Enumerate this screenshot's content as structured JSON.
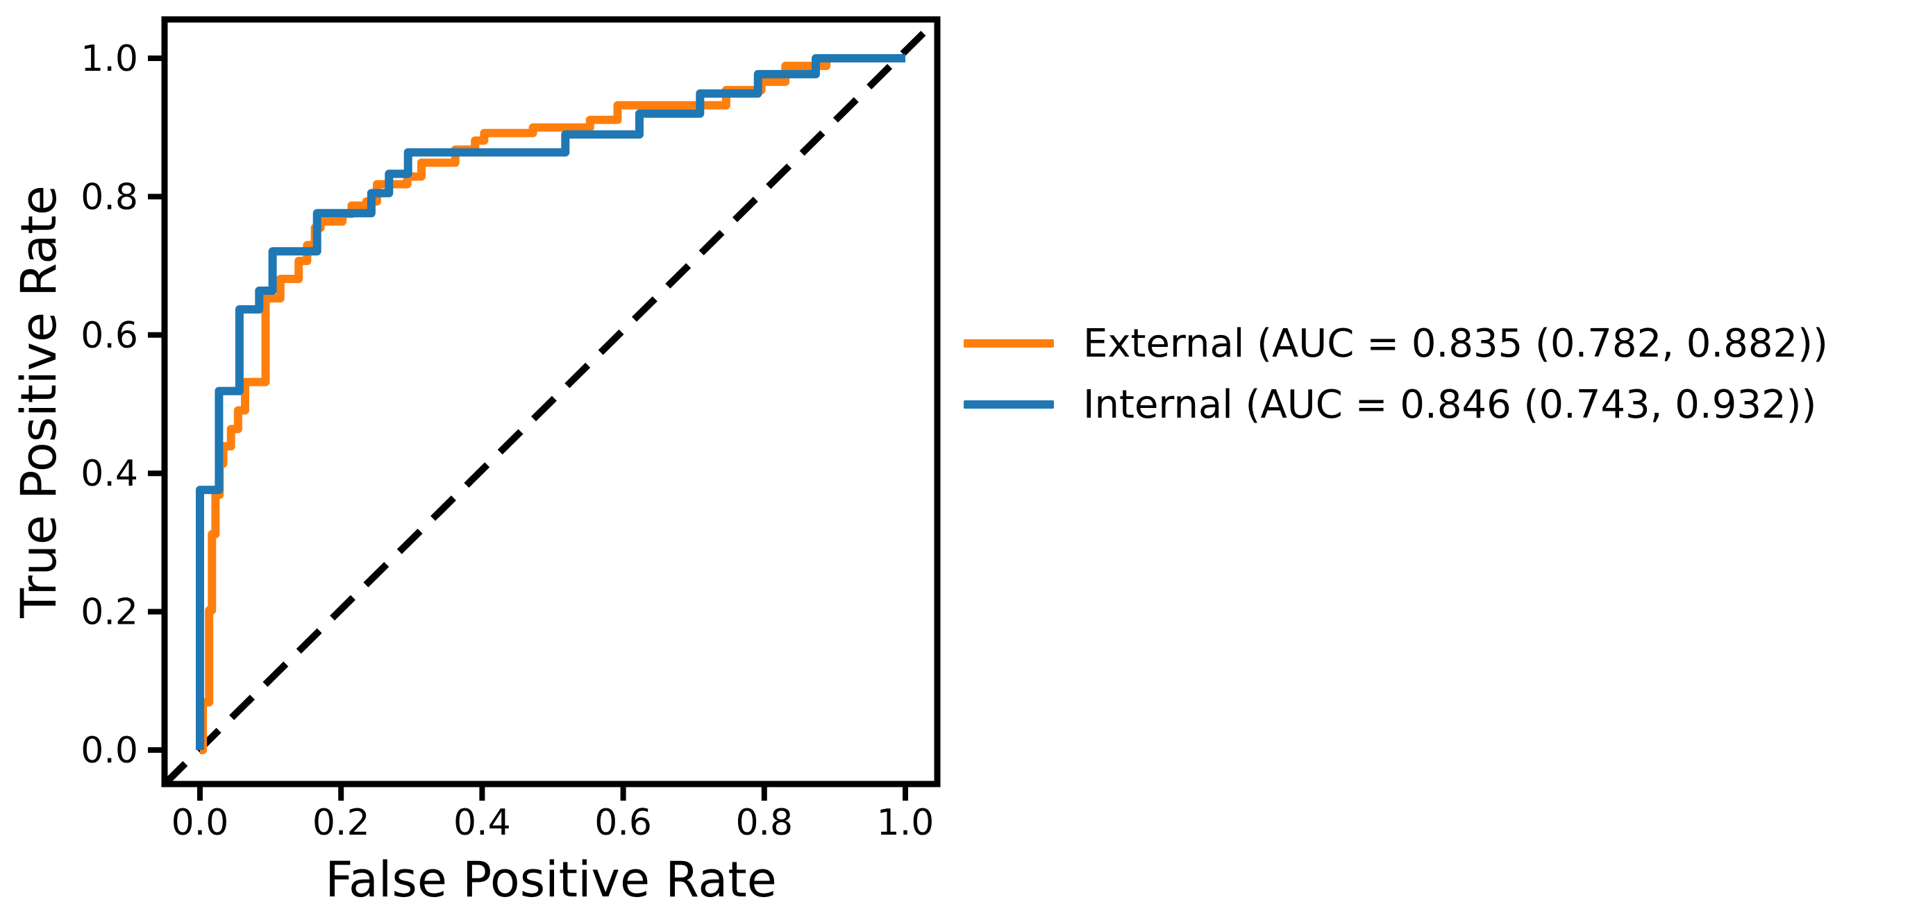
{
  "chart_data": {
    "type": "line",
    "subtype": "roc-step-curves",
    "title": "",
    "xlabel": "False Positive Rate",
    "ylabel": "True Positive Rate",
    "xlim": [
      -0.05,
      1.05
    ],
    "ylim": [
      -0.05,
      1.05
    ],
    "grid": false,
    "legend_position": "right-outside",
    "xticks": [
      {
        "v": 0.0,
        "label": "0.0"
      },
      {
        "v": 0.2,
        "label": "0.2"
      },
      {
        "v": 0.4,
        "label": "0.4"
      },
      {
        "v": 0.6,
        "label": "0.6"
      },
      {
        "v": 0.8,
        "label": "0.8"
      },
      {
        "v": 1.0,
        "label": "1.0"
      }
    ],
    "yticks": [
      {
        "v": 0.0,
        "label": "0.0"
      },
      {
        "v": 0.2,
        "label": "0.2"
      },
      {
        "v": 0.4,
        "label": "0.4"
      },
      {
        "v": 0.6,
        "label": "0.6"
      },
      {
        "v": 0.8,
        "label": "0.8"
      },
      {
        "v": 1.0,
        "label": "1.0"
      }
    ],
    "reference_line": {
      "name": "chance-diagonal",
      "style": "dashed",
      "color": "#000000",
      "from": [
        0,
        0
      ],
      "to": [
        1,
        1
      ]
    },
    "series": [
      {
        "name": "External",
        "label": "External (AUC = 0.835 (0.782, 0.882))",
        "auc": 0.835,
        "auc_ci_low": 0.782,
        "auc_ci_high": 0.882,
        "color": "#ff7f0e",
        "points": [
          [
            0.0,
            0.0
          ],
          [
            0.004,
            0.0
          ],
          [
            0.004,
            0.069
          ],
          [
            0.013,
            0.069
          ],
          [
            0.013,
            0.202
          ],
          [
            0.017,
            0.202
          ],
          [
            0.017,
            0.312
          ],
          [
            0.022,
            0.312
          ],
          [
            0.022,
            0.369
          ],
          [
            0.028,
            0.369
          ],
          [
            0.028,
            0.414
          ],
          [
            0.033,
            0.414
          ],
          [
            0.033,
            0.439
          ],
          [
            0.044,
            0.439
          ],
          [
            0.044,
            0.464
          ],
          [
            0.054,
            0.464
          ],
          [
            0.054,
            0.491
          ],
          [
            0.064,
            0.491
          ],
          [
            0.064,
            0.532
          ],
          [
            0.093,
            0.532
          ],
          [
            0.093,
            0.653
          ],
          [
            0.114,
            0.653
          ],
          [
            0.114,
            0.681
          ],
          [
            0.14,
            0.681
          ],
          [
            0.14,
            0.707
          ],
          [
            0.152,
            0.707
          ],
          [
            0.152,
            0.73
          ],
          [
            0.163,
            0.73
          ],
          [
            0.163,
            0.755
          ],
          [
            0.171,
            0.755
          ],
          [
            0.171,
            0.764
          ],
          [
            0.202,
            0.764
          ],
          [
            0.202,
            0.775
          ],
          [
            0.215,
            0.775
          ],
          [
            0.215,
            0.787
          ],
          [
            0.236,
            0.787
          ],
          [
            0.236,
            0.793
          ],
          [
            0.251,
            0.793
          ],
          [
            0.251,
            0.818
          ],
          [
            0.294,
            0.818
          ],
          [
            0.294,
            0.829
          ],
          [
            0.314,
            0.829
          ],
          [
            0.314,
            0.849
          ],
          [
            0.362,
            0.849
          ],
          [
            0.362,
            0.868
          ],
          [
            0.39,
            0.868
          ],
          [
            0.39,
            0.881
          ],
          [
            0.403,
            0.881
          ],
          [
            0.403,
            0.892
          ],
          [
            0.472,
            0.892
          ],
          [
            0.472,
            0.9
          ],
          [
            0.553,
            0.9
          ],
          [
            0.553,
            0.911
          ],
          [
            0.592,
            0.911
          ],
          [
            0.592,
            0.932
          ],
          [
            0.746,
            0.932
          ],
          [
            0.746,
            0.954
          ],
          [
            0.796,
            0.954
          ],
          [
            0.796,
            0.966
          ],
          [
            0.83,
            0.966
          ],
          [
            0.83,
            0.989
          ],
          [
            0.888,
            0.989
          ],
          [
            0.888,
            1.0
          ],
          [
            1.0,
            1.0
          ]
        ]
      },
      {
        "name": "Internal",
        "label": "Internal (AUC = 0.846 (0.743, 0.932))",
        "auc": 0.846,
        "auc_ci_low": 0.743,
        "auc_ci_high": 0.932,
        "color": "#1f77b4",
        "points": [
          [
            0.0,
            0.0
          ],
          [
            0.0,
            0.376
          ],
          [
            0.027,
            0.376
          ],
          [
            0.027,
            0.519
          ],
          [
            0.056,
            0.519
          ],
          [
            0.056,
            0.637
          ],
          [
            0.084,
            0.637
          ],
          [
            0.084,
            0.664
          ],
          [
            0.103,
            0.664
          ],
          [
            0.103,
            0.721
          ],
          [
            0.166,
            0.721
          ],
          [
            0.166,
            0.776
          ],
          [
            0.243,
            0.776
          ],
          [
            0.243,
            0.805
          ],
          [
            0.268,
            0.805
          ],
          [
            0.268,
            0.833
          ],
          [
            0.295,
            0.833
          ],
          [
            0.295,
            0.864
          ],
          [
            0.518,
            0.864
          ],
          [
            0.518,
            0.89
          ],
          [
            0.623,
            0.89
          ],
          [
            0.623,
            0.92
          ],
          [
            0.709,
            0.92
          ],
          [
            0.709,
            0.949
          ],
          [
            0.791,
            0.949
          ],
          [
            0.791,
            0.977
          ],
          [
            0.873,
            0.977
          ],
          [
            0.873,
            1.0
          ],
          [
            1.0,
            1.0
          ]
        ]
      }
    ]
  }
}
